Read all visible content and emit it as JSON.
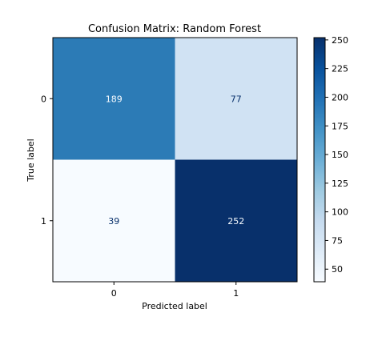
{
  "chart_data": {
    "type": "heatmap",
    "title": "Confusion Matrix: Random Forest",
    "xlabel": "Predicted label",
    "ylabel": "True label",
    "x_categories": [
      "0",
      "1"
    ],
    "y_categories": [
      "0",
      "1"
    ],
    "values": [
      [
        189,
        77
      ],
      [
        39,
        252
      ]
    ],
    "cell_labels": [
      [
        "189",
        "77"
      ],
      [
        "39",
        "252"
      ]
    ],
    "colormap": "Blues",
    "color_range": [
      39,
      252
    ],
    "colorbar": {
      "ticks": [
        50,
        75,
        100,
        125,
        150,
        175,
        200,
        225,
        250
      ],
      "tick_labels": [
        "50",
        "75",
        "100",
        "125",
        "150",
        "175",
        "200",
        "225",
        "250"
      ]
    },
    "colors": {
      "cell_0_0": "#2c7bb6",
      "cell_0_1": "#d0e2f3",
      "cell_1_0": "#f7fbff",
      "cell_1_1": "#08306b",
      "text_dark": "#08306b",
      "text_light": "#f7fbff"
    }
  }
}
